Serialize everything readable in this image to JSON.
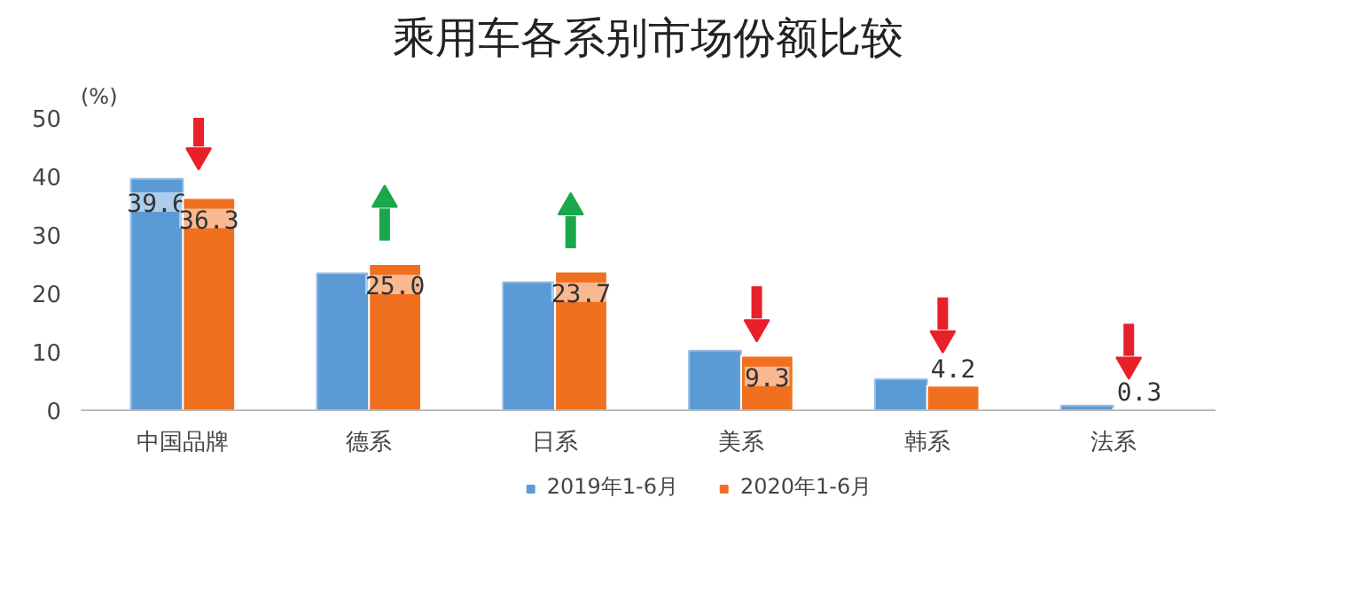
{
  "chart_data": {
    "type": "bar",
    "title": "乘用车各系别市场份额比较",
    "ylabel": "(%)",
    "categories": [
      "中国品牌",
      "德系",
      "日系",
      "美系",
      "韩系",
      "法系"
    ],
    "series": [
      {
        "name": "2019年1-6月",
        "color": "#5b9bd5",
        "values": [
          39.6,
          23.4,
          21.9,
          10.2,
          5.3,
          0.8
        ],
        "value_labels": [
          "39.6",
          null,
          null,
          null,
          null,
          null
        ]
      },
      {
        "name": "2020年1-6月",
        "color": "#f07020",
        "values": [
          36.3,
          25.0,
          23.7,
          9.3,
          4.2,
          0.3
        ],
        "value_labels": [
          "36.3",
          "25.0",
          "23.7",
          "9.3",
          "4.2",
          "0.3"
        ]
      }
    ],
    "ylim": [
      0,
      50
    ],
    "yticks": [
      0,
      10,
      20,
      30,
      40,
      50
    ],
    "grid": false,
    "legend": "bottom"
  }
}
